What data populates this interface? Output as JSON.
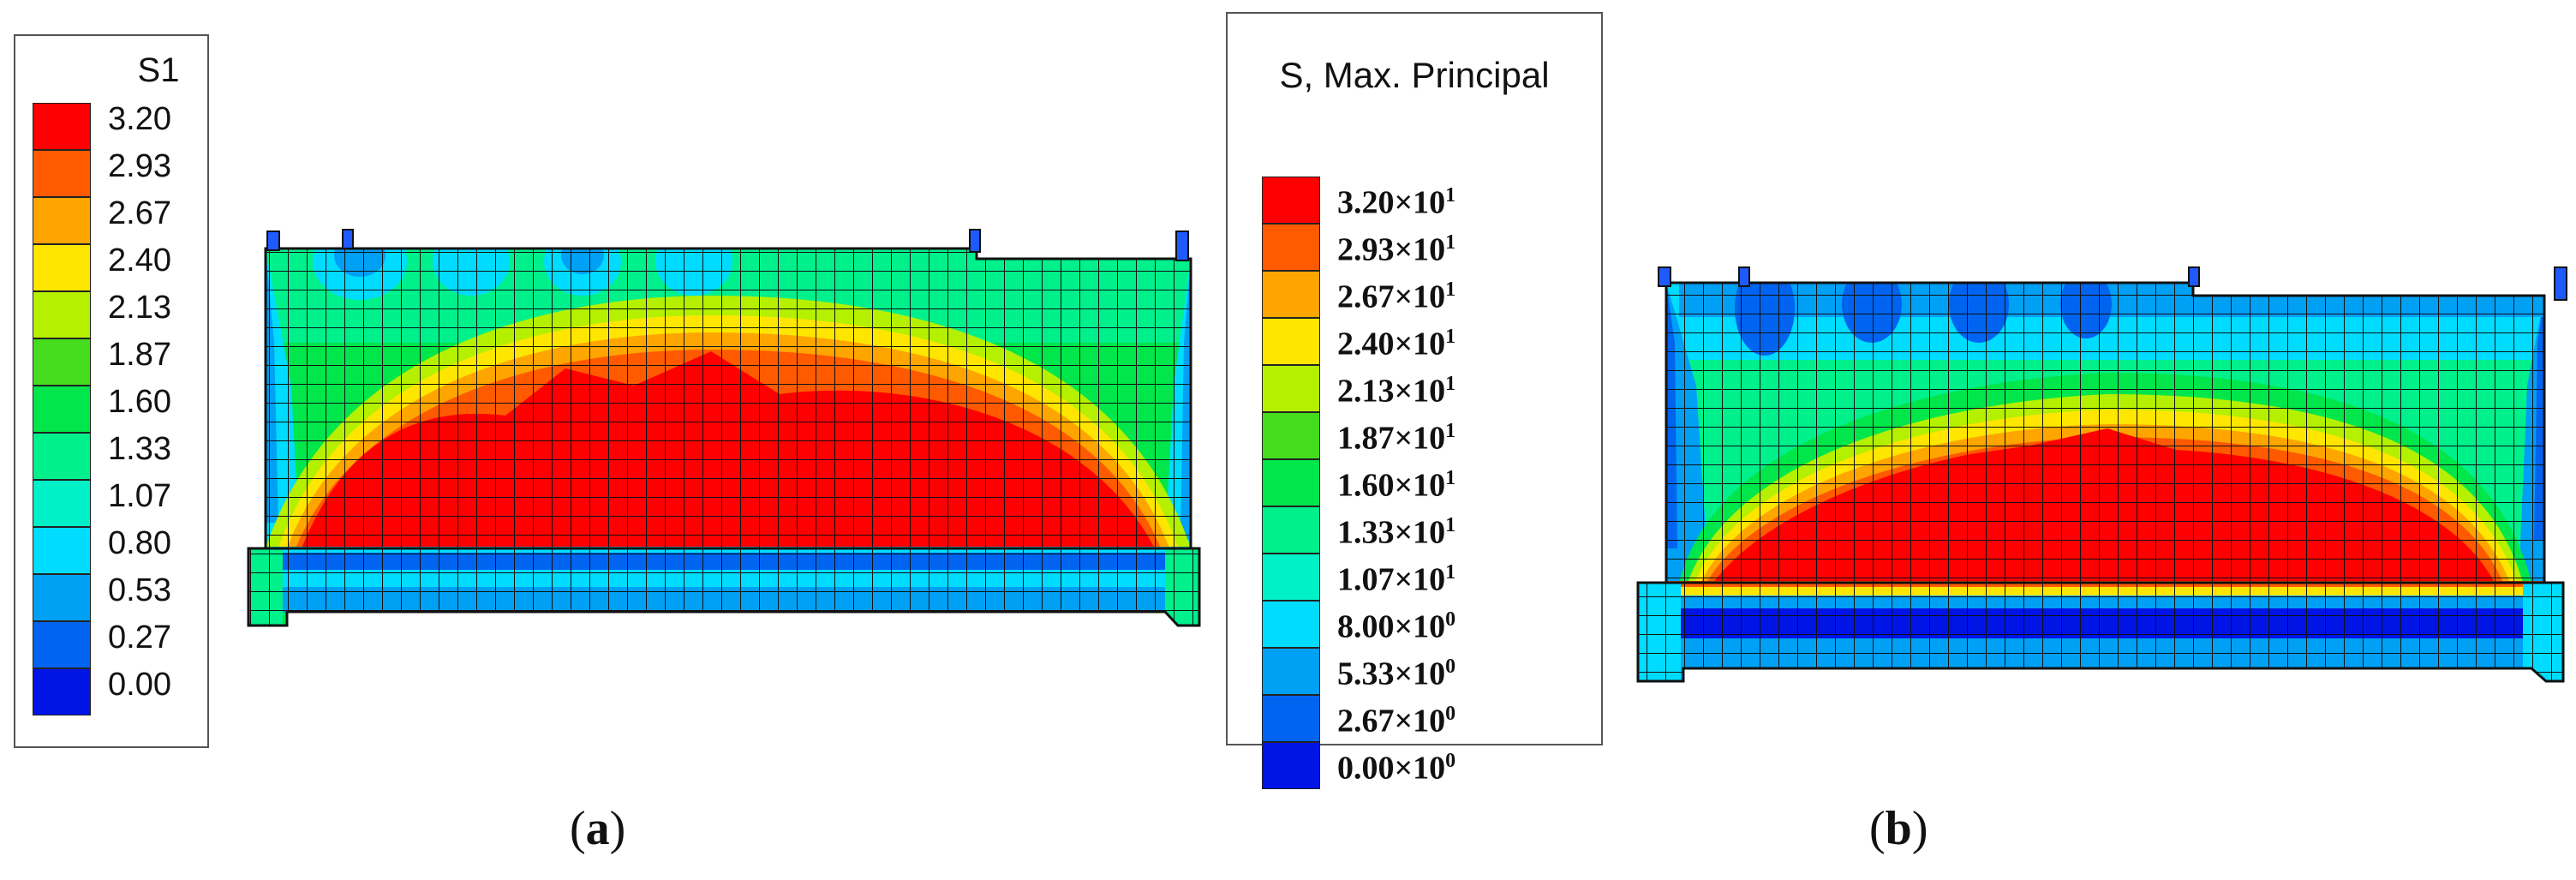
{
  "legend_a": {
    "title": "S1",
    "labels": [
      "3.20",
      "2.93",
      "2.67",
      "2.40",
      "2.13",
      "1.87",
      "1.60",
      "1.33",
      "1.07",
      "0.80",
      "0.53",
      "0.27",
      "0.00"
    ]
  },
  "legend_b": {
    "title": "S, Max. Principal",
    "labels": [
      "3.20×10",
      "2.93×10",
      "2.67×10",
      "2.40×10",
      "2.13×10",
      "1.87×10",
      "1.60×10",
      "1.33×10",
      "1.07×10",
      "8.00×10",
      "5.33×10",
      "2.67×10",
      "0.00×10"
    ],
    "exponents": [
      "1",
      "1",
      "1",
      "1",
      "1",
      "1",
      "1",
      "1",
      "1",
      "0",
      "0",
      "0",
      "0"
    ]
  },
  "colors": [
    "#ff0000",
    "#ff5a00",
    "#ffa500",
    "#ffe600",
    "#b4f000",
    "#46dc1e",
    "#00e64b",
    "#00f08c",
    "#00f0c8",
    "#00dcff",
    "#00a0f5",
    "#0064f0",
    "#0014e6"
  ],
  "captions": {
    "a_open": "(",
    "a_letter": "a",
    "a_close": ")",
    "b_open": "(",
    "b_letter": "b",
    "b_close": ")"
  }
}
